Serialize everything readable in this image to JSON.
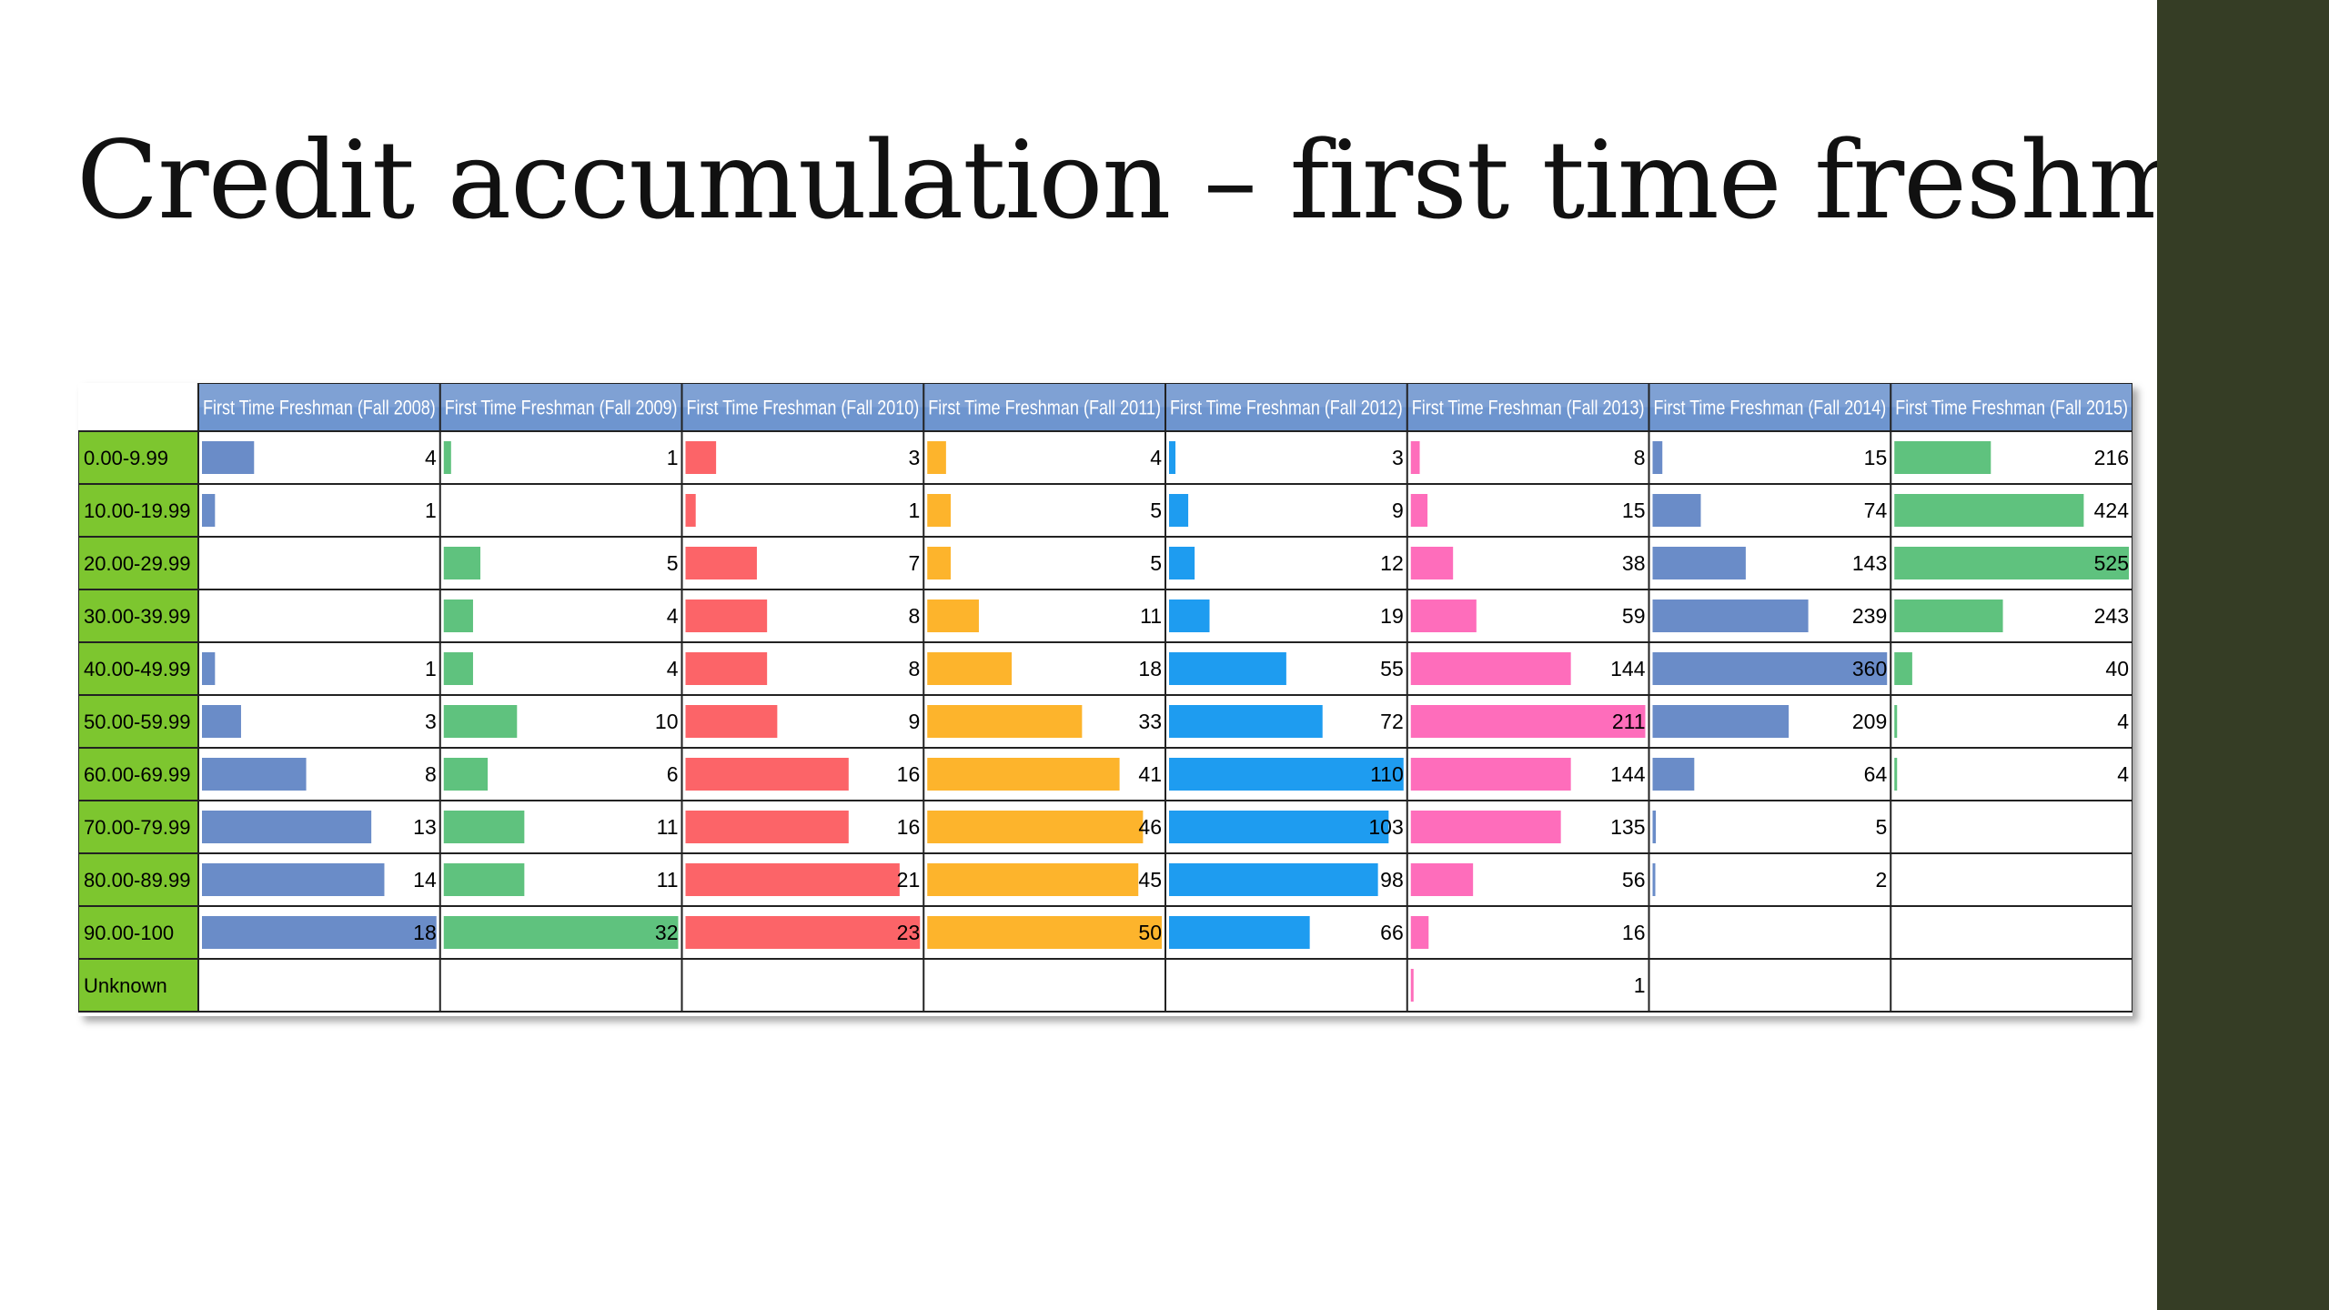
{
  "title": "Credit accumulation – first time freshmen",
  "chart_data": {
    "type": "table",
    "columns": [
      "First Time Freshman (Fall 2008)",
      "First Time Freshman (Fall 2009)",
      "First Time Freshman (Fall 2010)",
      "First Time Freshman (Fall 2011)",
      "First Time Freshman (Fall 2012)",
      "First Time Freshman (Fall 2013)",
      "First Time Freshman (Fall 2014)",
      "First Time Freshman (Fall 2015)"
    ],
    "rows": [
      "0.00-9.99",
      "10.00-19.99",
      "20.00-29.99",
      "30.00-39.99",
      "40.00-49.99",
      "50.00-59.99",
      "60.00-69.99",
      "70.00-79.99",
      "80.00-89.99",
      "90.00-100",
      "Unknown"
    ],
    "series": [
      {
        "color": "#6a8cc8",
        "values": [
          4,
          1,
          null,
          null,
          1,
          3,
          8,
          13,
          14,
          18,
          null
        ]
      },
      {
        "color": "#5fc27e",
        "values": [
          1,
          null,
          5,
          4,
          4,
          10,
          6,
          11,
          11,
          32,
          null
        ]
      },
      {
        "color": "#fc6468",
        "values": [
          3,
          1,
          7,
          8,
          8,
          9,
          16,
          16,
          21,
          23,
          null
        ]
      },
      {
        "color": "#fdb42c",
        "values": [
          4,
          5,
          5,
          11,
          18,
          33,
          41,
          46,
          45,
          50,
          null
        ]
      },
      {
        "color": "#1e9cf0",
        "values": [
          3,
          9,
          12,
          19,
          55,
          72,
          110,
          103,
          98,
          66,
          null
        ]
      },
      {
        "color": "#fe6dbb",
        "values": [
          8,
          15,
          38,
          59,
          144,
          211,
          144,
          135,
          56,
          16,
          1
        ]
      },
      {
        "color": "#6a8cc8",
        "values": [
          15,
          74,
          143,
          239,
          360,
          209,
          64,
          5,
          2,
          null,
          null
        ]
      },
      {
        "color": "#5fc27e",
        "values": [
          216,
          424,
          525,
          243,
          40,
          4,
          4,
          null,
          null,
          null,
          null
        ]
      }
    ],
    "header_color": "#6e95cf",
    "row_label_color": "#7dc62f"
  }
}
